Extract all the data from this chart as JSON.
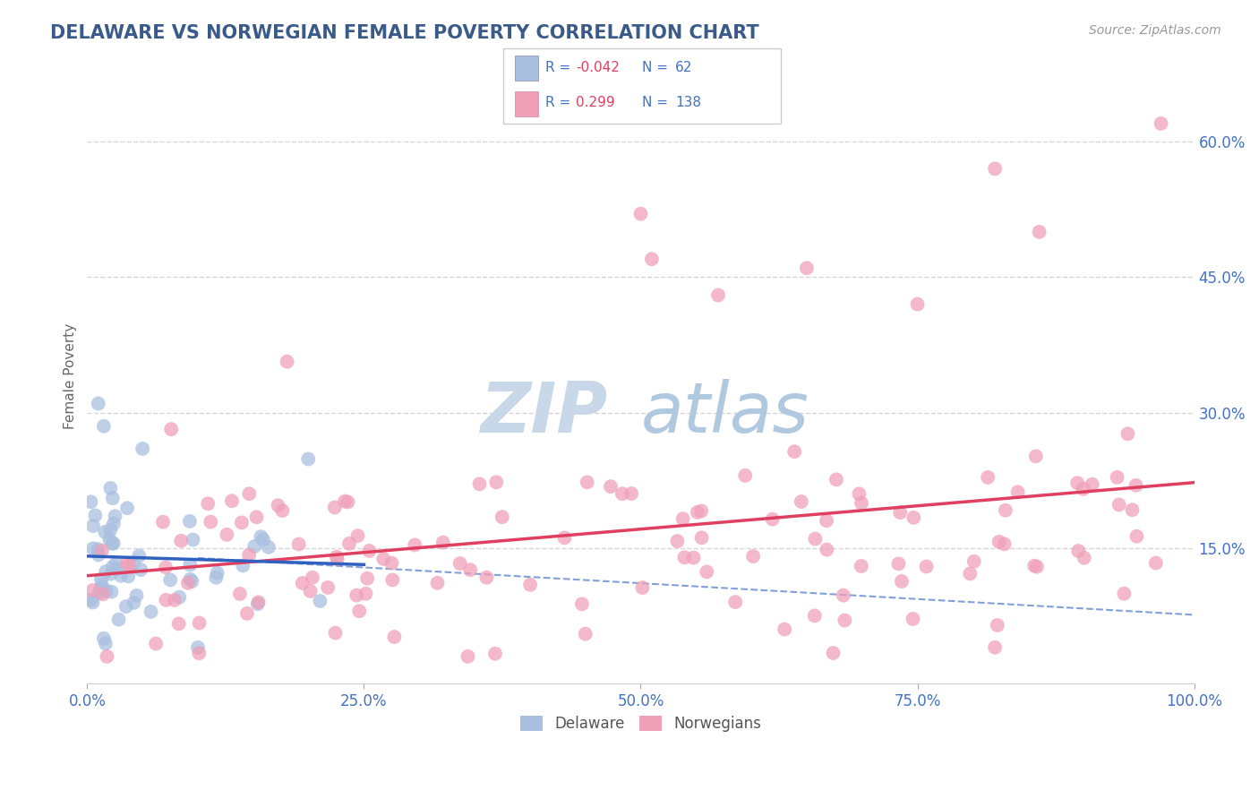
{
  "title": "DELAWARE VS NORWEGIAN FEMALE POVERTY CORRELATION CHART",
  "source": "Source: ZipAtlas.com",
  "ylabel": "Female Poverty",
  "xlim": [
    0,
    100
  ],
  "ylim": [
    0,
    68
  ],
  "yticks": [
    15,
    30,
    45,
    60
  ],
  "ytick_labels": [
    "15.0%",
    "30.0%",
    "45.0%",
    "60.0%"
  ],
  "xticks": [
    0,
    25,
    50,
    75,
    100
  ],
  "xtick_labels": [
    "0.0%",
    "25.0%",
    "50.0%",
    "75.0%",
    "100.0%"
  ],
  "background_color": "#ffffff",
  "grid_color": "#cccccc",
  "watermark_zip": "ZIP",
  "watermark_atlas": "atlas",
  "watermark_color_zip": "#c8d8e8",
  "watermark_color_atlas": "#b0c8e0",
  "delaware_color": "#a8bfe0",
  "norwegian_color": "#f0a0b8",
  "delaware_line_color": "#3060c0",
  "norwegian_line_color": "#e04060",
  "delaware_R": "-0.042",
  "delaware_N": "62",
  "norwegian_R": "0.299",
  "norwegian_N": "138",
  "title_color": "#3a5a8a",
  "tick_color": "#4472c4",
  "ylabel_color": "#666666",
  "source_color": "#999999",
  "legend_text_color": "#4472c4",
  "legend_r_neg_color": "#e04060",
  "legend_r_pos_color": "#4472c4"
}
